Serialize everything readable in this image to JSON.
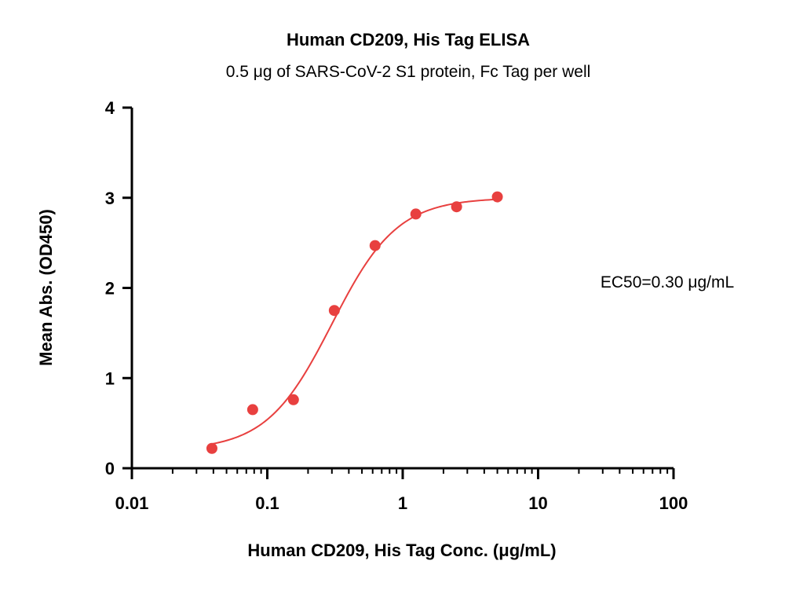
{
  "chart_data": {
    "type": "scatter",
    "title": "Human CD209, His Tag ELISA",
    "subtitle": "0.5 μg of SARS-CoV-2 S1 protein, Fc Tag per well",
    "xlabel": "Human CD209, His Tag Conc. (μg/mL)",
    "ylabel": "Mean Abs. (OD450)",
    "x_scale": "log",
    "xlim": [
      0.01,
      100
    ],
    "ylim": [
      0,
      4
    ],
    "x_ticks": [
      0.01,
      0.1,
      1,
      10,
      100
    ],
    "x_tick_labels": [
      "0.01",
      "0.1",
      "1",
      "10",
      "100"
    ],
    "y_ticks": [
      0,
      1,
      2,
      3,
      4
    ],
    "y_tick_labels": [
      "0",
      "1",
      "2",
      "3",
      "4"
    ],
    "grid": false,
    "color": "#e8403f",
    "series": [
      {
        "x": [
          0.039,
          0.078,
          0.156,
          0.3125,
          0.625,
          1.25,
          2.5,
          5.0
        ],
        "y": [
          0.22,
          0.65,
          0.76,
          1.75,
          2.47,
          2.82,
          2.9,
          3.01
        ]
      }
    ],
    "fit": {
      "model": "four-parameter logistic",
      "bottom": 0.2,
      "top": 3.0,
      "ec50": 0.3,
      "hill": 1.8,
      "x_range": [
        0.039,
        5.0
      ]
    },
    "annotation": "EC50=0.30 μg/mL"
  }
}
